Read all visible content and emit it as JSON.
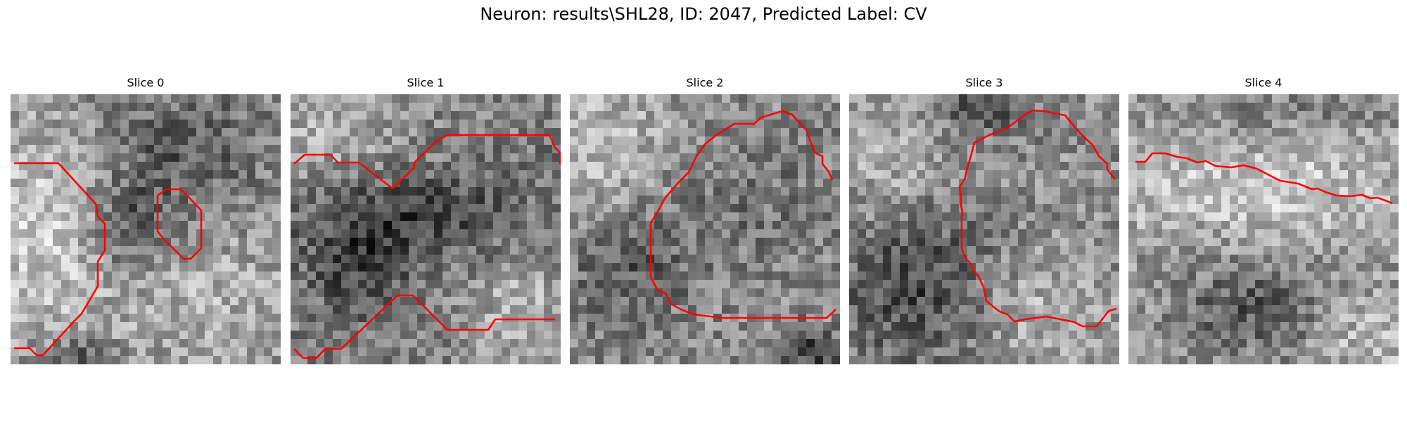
{
  "title": "Neuron: results\\SHL28, ID: 2047, Predicted Label: CV",
  "panels": [
    {
      "label": "Slice 0"
    },
    {
      "label": "Slice 1"
    },
    {
      "label": "Slice 2"
    },
    {
      "label": "Slice 3"
    },
    {
      "label": "Slice 4"
    }
  ],
  "colors": {
    "contour": "#ff0000",
    "background": "#ffffff"
  },
  "image_style": "grayscale noisy microscopy patch"
}
